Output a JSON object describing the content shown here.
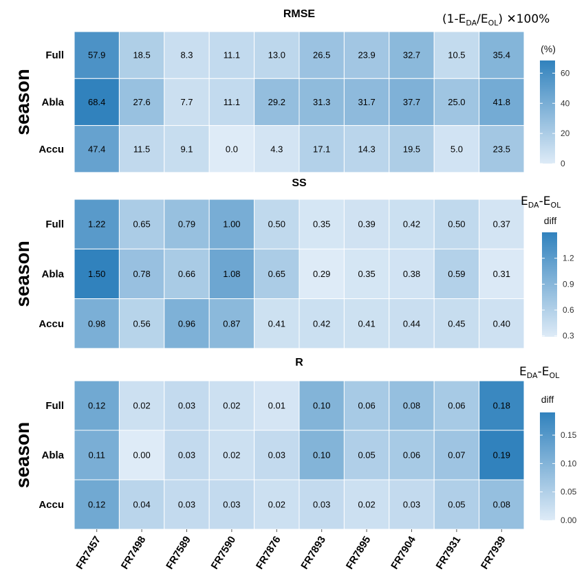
{
  "x_categories": [
    "FR7457",
    "FR7498",
    "FR7589",
    "FR7590",
    "FR7876",
    "FR7893",
    "FR7895",
    "FR7904",
    "FR7931",
    "FR7939"
  ],
  "row_labels": [
    "Full",
    "Abla",
    "Accu"
  ],
  "y_title": "season",
  "colors": {
    "low": "#deebf7",
    "high": "#3182bd",
    "grid": "#ffffff"
  },
  "chart_data": [
    {
      "type": "heatmap",
      "title": "RMSE",
      "formula": {
        "prefix": "(1-E",
        "sub1": "DA",
        "mid": "/E",
        "sub2": "OL",
        "suffix": ") ✕100%"
      },
      "legend": {
        "title": "(%)",
        "ticks": [
          "60",
          "40",
          "20",
          "0"
        ],
        "tick_values": [
          60,
          40,
          20,
          0
        ],
        "range": [
          0,
          68.4
        ]
      },
      "values": [
        [
          57.9,
          18.5,
          8.3,
          11.1,
          13.0,
          26.5,
          23.9,
          32.7,
          10.5,
          35.4
        ],
        [
          68.4,
          27.6,
          7.7,
          11.1,
          29.2,
          31.3,
          31.7,
          37.7,
          25.0,
          41.8
        ],
        [
          47.4,
          11.5,
          9.1,
          0.0,
          4.3,
          17.1,
          14.3,
          19.5,
          5.0,
          23.5
        ]
      ],
      "labels": [
        [
          "57.9",
          "18.5",
          "8.3",
          "11.1",
          "13.0",
          "26.5",
          "23.9",
          "32.7",
          "10.5",
          "35.4"
        ],
        [
          "68.4",
          "27.6",
          "7.7",
          "11.1",
          "29.2",
          "31.3",
          "31.7",
          "37.7",
          "25.0",
          "41.8"
        ],
        [
          "47.4",
          "11.5",
          "9.1",
          "0.0",
          "4.3",
          "17.1",
          "14.3",
          "19.5",
          "5.0",
          "23.5"
        ]
      ]
    },
    {
      "type": "heatmap",
      "title": "SS",
      "formula": {
        "prefix": "E",
        "sub1": "DA",
        "mid": "-E",
        "sub2": "OL",
        "suffix": ""
      },
      "legend": {
        "title": "diff",
        "ticks": [
          "1.2",
          "0.9",
          "0.6",
          "0.3"
        ],
        "tick_values": [
          1.2,
          0.9,
          0.6,
          0.3
        ],
        "range": [
          0.29,
          1.5
        ]
      },
      "values": [
        [
          1.22,
          0.65,
          0.79,
          1.0,
          0.5,
          0.35,
          0.39,
          0.42,
          0.5,
          0.37
        ],
        [
          1.5,
          0.78,
          0.66,
          1.08,
          0.65,
          0.29,
          0.35,
          0.38,
          0.59,
          0.31
        ],
        [
          0.98,
          0.56,
          0.96,
          0.87,
          0.41,
          0.42,
          0.41,
          0.44,
          0.45,
          0.4
        ]
      ],
      "labels": [
        [
          "1.22",
          "0.65",
          "0.79",
          "1.00",
          "0.50",
          "0.35",
          "0.39",
          "0.42",
          "0.50",
          "0.37"
        ],
        [
          "1.50",
          "0.78",
          "0.66",
          "1.08",
          "0.65",
          "0.29",
          "0.35",
          "0.38",
          "0.59",
          "0.31"
        ],
        [
          "0.98",
          "0.56",
          "0.96",
          "0.87",
          "0.41",
          "0.42",
          "0.41",
          "0.44",
          "0.45",
          "0.40"
        ]
      ]
    },
    {
      "type": "heatmap",
      "title": "R",
      "formula": {
        "prefix": "E",
        "sub1": "DA",
        "mid": "-E",
        "sub2": "OL",
        "suffix": ""
      },
      "legend": {
        "title": "diff",
        "ticks": [
          "0.15",
          "0.10",
          "0.05",
          "0.00"
        ],
        "tick_values": [
          0.15,
          0.1,
          0.05,
          0.0
        ],
        "range": [
          0.0,
          0.19
        ]
      },
      "values": [
        [
          0.12,
          0.02,
          0.03,
          0.02,
          0.01,
          0.1,
          0.06,
          0.08,
          0.06,
          0.18
        ],
        [
          0.11,
          0.0,
          0.03,
          0.02,
          0.03,
          0.1,
          0.05,
          0.06,
          0.07,
          0.19
        ],
        [
          0.12,
          0.04,
          0.03,
          0.03,
          0.02,
          0.03,
          0.02,
          0.03,
          0.05,
          0.08
        ]
      ],
      "labels": [
        [
          "0.12",
          "0.02",
          "0.03",
          "0.02",
          "0.01",
          "0.10",
          "0.06",
          "0.08",
          "0.06",
          "0.18"
        ],
        [
          "0.11",
          "0.00",
          "0.03",
          "0.02",
          "0.03",
          "0.10",
          "0.05",
          "0.06",
          "0.07",
          "0.19"
        ],
        [
          "0.12",
          "0.04",
          "0.03",
          "0.03",
          "0.02",
          "0.03",
          "0.02",
          "0.03",
          "0.05",
          "0.08"
        ]
      ]
    }
  ]
}
